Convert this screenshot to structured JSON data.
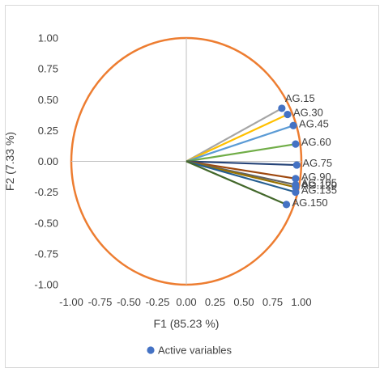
{
  "chart_data": {
    "type": "scatter",
    "subtype": "correlation-circle",
    "xlabel": "F1 (85.23 %)",
    "ylabel": "F2 (7.33 %)",
    "xlim": [
      -1.0,
      1.0
    ],
    "ylim": [
      -1.0,
      1.0
    ],
    "xticks": [
      "-1.00",
      "-0.75",
      "-0.50",
      "-0.25",
      "0.00",
      "0.25",
      "0.50",
      "0.75",
      "1.00"
    ],
    "yticks": [
      "1.00",
      "0.75",
      "0.50",
      "0.25",
      "0.00",
      "-0.25",
      "-0.50",
      "-0.75",
      "-1.00"
    ],
    "grid": false,
    "circle_radius": 1.0,
    "circle_color": "#ED7D31",
    "legend": {
      "label": "Active variables",
      "position": "bottom",
      "marker_color": "#4472C4"
    },
    "points": [
      {
        "label": "AG.15",
        "x": 0.83,
        "y": 0.43,
        "color": "#A5A5A5"
      },
      {
        "label": "AG.30",
        "x": 0.88,
        "y": 0.38,
        "color": "#FFC000"
      },
      {
        "label": "AG.45",
        "x": 0.93,
        "y": 0.29,
        "color": "#5B9BD5"
      },
      {
        "label": "AG.60",
        "x": 0.95,
        "y": 0.14,
        "color": "#70AD47"
      },
      {
        "label": "AG.75",
        "x": 0.96,
        "y": -0.03,
        "color": "#264478"
      },
      {
        "label": "AG.90",
        "x": 0.95,
        "y": -0.14,
        "color": "#9E480E"
      },
      {
        "label": "AG.105",
        "x": 0.95,
        "y": -0.19,
        "color": "#636363"
      },
      {
        "label": "AG.120",
        "x": 0.95,
        "y": -0.21,
        "color": "#997300"
      },
      {
        "label": "AG.135",
        "x": 0.95,
        "y": -0.25,
        "color": "#255E91"
      },
      {
        "label": "AG.150",
        "x": 0.87,
        "y": -0.35,
        "color": "#43682B"
      }
    ]
  }
}
